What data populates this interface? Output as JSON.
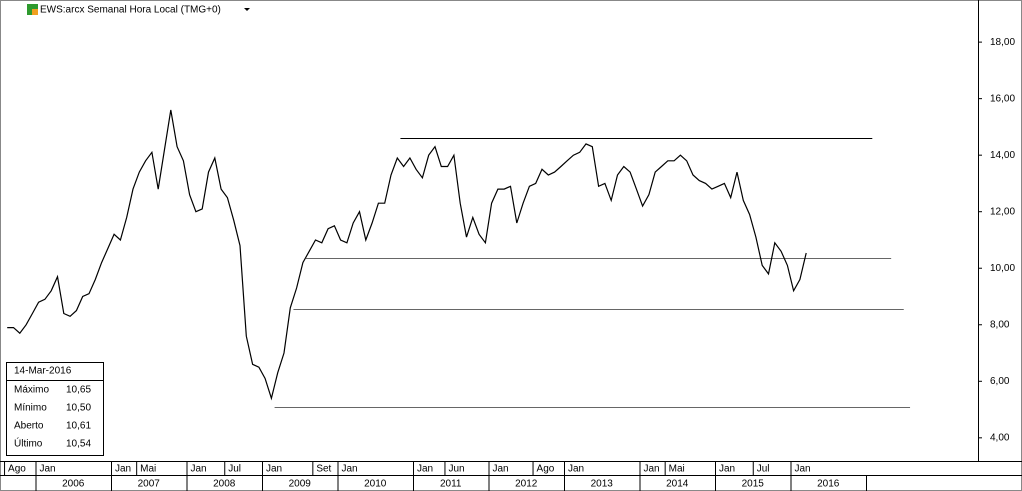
{
  "chart_data": {
    "type": "line",
    "title": "EWS:arcx Semanal Hora Local (TMG+0)",
    "x": [
      "2005-08",
      "2005-09",
      "2005-10",
      "2005-11",
      "2005-12",
      "2006-01",
      "2006-02",
      "2006-03",
      "2006-04",
      "2006-05",
      "2006-06",
      "2006-07",
      "2006-08",
      "2006-09",
      "2006-10",
      "2006-11",
      "2006-12",
      "2007-01",
      "2007-02",
      "2007-03",
      "2007-04",
      "2007-05",
      "2007-06",
      "2007-07",
      "2007-08",
      "2007-09",
      "2007-10",
      "2007-11",
      "2007-12",
      "2008-01",
      "2008-02",
      "2008-03",
      "2008-04",
      "2008-05",
      "2008-06",
      "2008-07",
      "2008-08",
      "2008-09",
      "2008-10",
      "2008-11",
      "2008-12",
      "2009-01",
      "2009-02",
      "2009-03",
      "2009-04",
      "2009-05",
      "2009-06",
      "2009-07",
      "2009-08",
      "2009-09",
      "2009-10",
      "2009-11",
      "2009-12",
      "2010-01",
      "2010-02",
      "2010-03",
      "2010-04",
      "2010-05",
      "2010-06",
      "2010-07",
      "2010-08",
      "2010-09",
      "2010-10",
      "2010-11",
      "2010-12",
      "2011-01",
      "2011-02",
      "2011-03",
      "2011-04",
      "2011-05",
      "2011-06",
      "2011-07",
      "2011-08",
      "2011-09",
      "2011-10",
      "2011-11",
      "2011-12",
      "2012-01",
      "2012-02",
      "2012-03",
      "2012-04",
      "2012-05",
      "2012-06",
      "2012-07",
      "2012-08",
      "2012-09",
      "2012-10",
      "2012-11",
      "2012-12",
      "2013-01",
      "2013-02",
      "2013-03",
      "2013-04",
      "2013-05",
      "2013-06",
      "2013-07",
      "2013-08",
      "2013-09",
      "2013-10",
      "2013-11",
      "2013-12",
      "2014-01",
      "2014-02",
      "2014-03",
      "2014-04",
      "2014-05",
      "2014-06",
      "2014-07",
      "2014-08",
      "2014-09",
      "2014-10",
      "2014-11",
      "2014-12",
      "2015-01",
      "2015-02",
      "2015-03",
      "2015-04",
      "2015-05",
      "2015-06",
      "2015-07",
      "2015-08",
      "2015-09",
      "2015-10",
      "2015-11",
      "2015-12",
      "2016-01",
      "2016-02",
      "2016-03"
    ],
    "series": [
      {
        "name": "EWS",
        "color": "#000000",
        "values": [
          7.9,
          7.9,
          7.7,
          8.0,
          8.4,
          8.8,
          8.9,
          9.2,
          9.7,
          8.4,
          8.3,
          8.5,
          9.0,
          9.1,
          9.6,
          10.2,
          10.7,
          11.2,
          11.0,
          11.8,
          12.8,
          13.4,
          13.8,
          14.1,
          12.8,
          14.2,
          15.6,
          14.3,
          13.8,
          12.6,
          12.0,
          12.1,
          13.4,
          13.9,
          12.8,
          12.5,
          11.7,
          10.8,
          7.6,
          6.6,
          6.5,
          6.1,
          5.4,
          6.3,
          7.0,
          8.6,
          9.3,
          10.2,
          10.6,
          11.0,
          10.9,
          11.4,
          11.5,
          11.0,
          10.9,
          11.6,
          12.0,
          11.0,
          11.6,
          12.3,
          12.3,
          13.3,
          13.9,
          13.6,
          13.9,
          13.5,
          13.2,
          14.0,
          14.3,
          13.6,
          13.6,
          14.0,
          12.3,
          11.1,
          11.8,
          11.2,
          10.9,
          12.3,
          12.8,
          12.8,
          12.9,
          11.6,
          12.3,
          12.9,
          13.0,
          13.5,
          13.3,
          13.4,
          13.6,
          13.8,
          14.0,
          14.1,
          14.4,
          14.3,
          12.9,
          13.0,
          12.4,
          13.3,
          13.6,
          13.4,
          12.8,
          12.2,
          12.6,
          13.4,
          13.6,
          13.8,
          13.8,
          14.0,
          13.8,
          13.3,
          13.1,
          13.0,
          12.8,
          12.9,
          13.0,
          12.5,
          13.4,
          12.4,
          11.9,
          11.1,
          10.1,
          9.8,
          10.9,
          10.6,
          10.1,
          9.2,
          9.6,
          10.54
        ]
      }
    ],
    "levels": [
      {
        "value": 14.6,
        "from": "2010-11",
        "to": "2017-02"
      },
      {
        "value": 10.35,
        "from": "2009-08",
        "to": "2017-05"
      },
      {
        "value": 8.55,
        "from": "2009-06",
        "to": "2017-07"
      },
      {
        "value": 5.1,
        "from": "2009-03",
        "to": "2017-08"
      }
    ],
    "ylim": [
      3.18,
      19.49
    ],
    "yticks": [
      {
        "value": 4,
        "label": "4,00"
      },
      {
        "value": 6,
        "label": "6,00"
      },
      {
        "value": 8,
        "label": "8,00"
      },
      {
        "value": 10,
        "label": "10,00"
      },
      {
        "value": 12,
        "label": "12,00"
      },
      {
        "value": 14,
        "label": "14,00"
      },
      {
        "value": 16,
        "label": "16,00"
      },
      {
        "value": 18,
        "label": "18,00"
      }
    ],
    "month_labels": [
      {
        "x": "2005-08",
        "label": "Ago"
      },
      {
        "x": "2006-01",
        "label": "Jan"
      },
      {
        "x": "2007-01",
        "label": "Jan"
      },
      {
        "x": "2007-05",
        "label": "Mai"
      },
      {
        "x": "2008-01",
        "label": "Jan"
      },
      {
        "x": "2008-07",
        "label": "Jul"
      },
      {
        "x": "2009-01",
        "label": "Jan"
      },
      {
        "x": "2009-09",
        "label": "Set"
      },
      {
        "x": "2010-01",
        "label": "Jan"
      },
      {
        "x": "2011-01",
        "label": "Jan"
      },
      {
        "x": "2011-06",
        "label": "Jun"
      },
      {
        "x": "2012-01",
        "label": "Jan"
      },
      {
        "x": "2012-08",
        "label": "Ago"
      },
      {
        "x": "2013-01",
        "label": "Jan"
      },
      {
        "x": "2014-01",
        "label": "Jan"
      },
      {
        "x": "2014-05",
        "label": "Mai"
      },
      {
        "x": "2015-01",
        "label": "Jan"
      },
      {
        "x": "2015-07",
        "label": "Jul"
      },
      {
        "x": "2016-01",
        "label": "Jan"
      }
    ],
    "years": [
      "2006",
      "2007",
      "2008",
      "2009",
      "2010",
      "2011",
      "2012",
      "2013",
      "2014",
      "2015",
      "2016"
    ],
    "info": {
      "date": "14-Mar-2016",
      "rows": [
        {
          "label": "Máximo",
          "value": "10,65"
        },
        {
          "label": "Mínimo",
          "value": "10,50"
        },
        {
          "label": "Aberto",
          "value": "10,61"
        },
        {
          "label": "Último",
          "value": "10,54"
        }
      ]
    }
  }
}
